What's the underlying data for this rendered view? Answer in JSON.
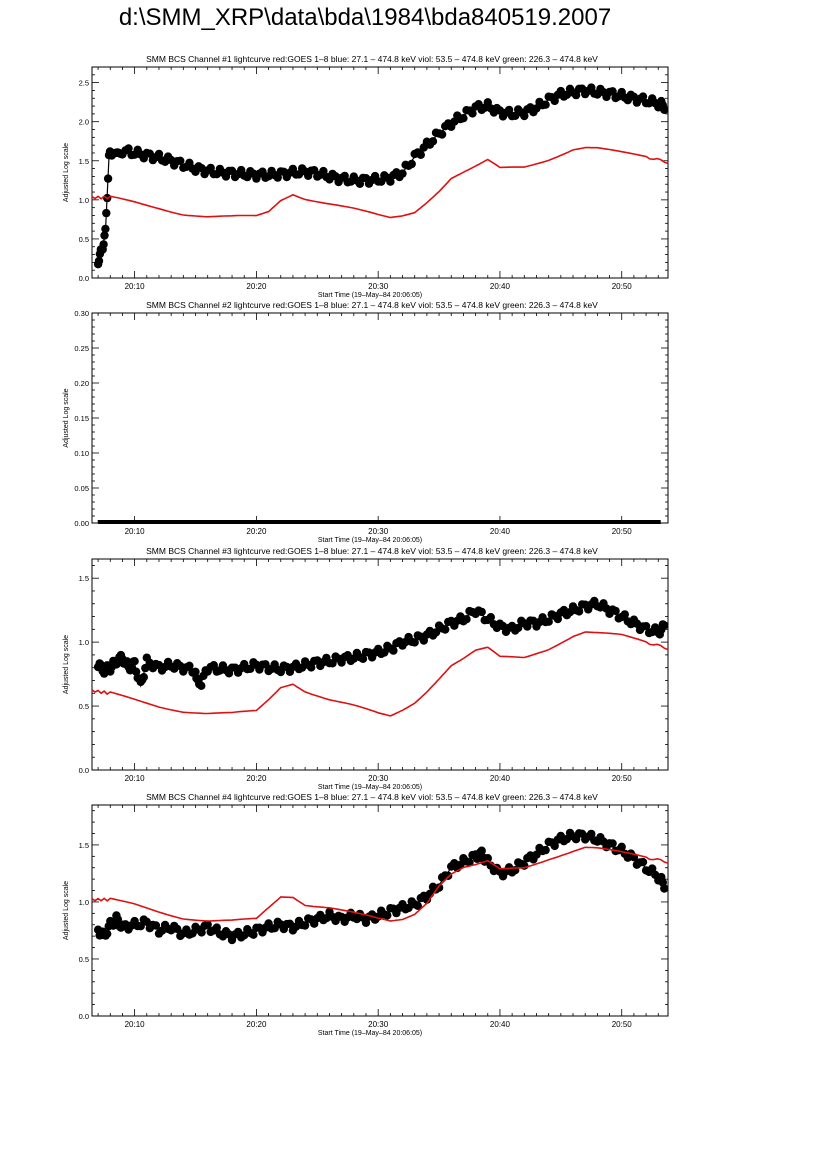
{
  "page_title": "d:\\SMM_XRP\\data\\bda\\1984\\bda840519.2007",
  "colors": {
    "red": "#dd1111",
    "black": "#000000"
  },
  "chart_data": [
    {
      "type": "scatter",
      "title": "SMM BCS Channel #1 lightcurve  red:GOES 1–8  blue: 27.1 – 474.8 keV  viol: 53.5 – 474.8 keV  green: 226.3 – 474.8 keV",
      "xlabel": "Start Time (19–May–84 20:06:05)",
      "ylabel": "Adjusted Log scale",
      "xlim": [
        6.5,
        53.8
      ],
      "ylim": [
        0,
        2.7
      ],
      "xticks": [
        10,
        20,
        30,
        40,
        50
      ],
      "xtick_labels": [
        "20:10",
        "20:20",
        "20:30",
        "20:40",
        "20:50"
      ],
      "yticks": [
        0,
        0.5,
        1.0,
        1.5,
        2.0,
        2.5
      ],
      "ytick_labels": [
        "0.0",
        "0.5",
        "1.0",
        "1.5",
        "2.0",
        "2.5"
      ],
      "series": [
        {
          "color": "#000000",
          "style": "points",
          "x": [
            7.0,
            7.3,
            7.6,
            7.9,
            8.2,
            8.6,
            9,
            10,
            11,
            12,
            13,
            14,
            15,
            16,
            17,
            18,
            19,
            20,
            21,
            22,
            23,
            24,
            25,
            26,
            27,
            28,
            29,
            30,
            31,
            32,
            33,
            34,
            35,
            36,
            37,
            38,
            39,
            40,
            41,
            42,
            43,
            44,
            45,
            46,
            47,
            48,
            49,
            50,
            51,
            52,
            53,
            53.5
          ],
          "y": [
            0.22,
            0.35,
            0.58,
            1.55,
            1.63,
            1.65,
            1.63,
            1.6,
            1.57,
            1.54,
            1.5,
            1.45,
            1.4,
            1.37,
            1.35,
            1.34,
            1.33,
            1.32,
            1.32,
            1.33,
            1.35,
            1.36,
            1.34,
            1.3,
            1.27,
            1.25,
            1.25,
            1.26,
            1.28,
            1.35,
            1.55,
            1.7,
            1.85,
            1.98,
            2.08,
            2.18,
            2.2,
            2.12,
            2.1,
            2.12,
            2.18,
            2.28,
            2.35,
            2.38,
            2.4,
            2.38,
            2.36,
            2.33,
            2.3,
            2.27,
            2.23,
            2.2
          ]
        },
        {
          "color": "#dd1111",
          "style": "line",
          "x": [
            6.5,
            8,
            10,
            12,
            14,
            16,
            18,
            20,
            21,
            22,
            23,
            24,
            26,
            28,
            30,
            31,
            32,
            33,
            34,
            35,
            36,
            37,
            38,
            39,
            40,
            42,
            44,
            46,
            47,
            48,
            50,
            52,
            53.8
          ],
          "y": [
            1.03,
            1.03,
            0.97,
            0.9,
            0.82,
            0.78,
            0.78,
            0.79,
            0.85,
            1.0,
            1.08,
            1.02,
            0.95,
            0.88,
            0.8,
            0.77,
            0.8,
            0.85,
            0.98,
            1.12,
            1.28,
            1.35,
            1.42,
            1.5,
            1.4,
            1.42,
            1.52,
            1.65,
            1.67,
            1.66,
            1.6,
            1.55,
            1.48
          ]
        }
      ]
    },
    {
      "type": "scatter",
      "title": "SMM BCS Channel #2 lightcurve  red:GOES 1–8  blue: 27.1 – 474.8 keV  viol: 53.5 – 474.8 keV  green: 226.3 – 474.8 keV",
      "xlabel": "Start Time (19–May–84 20:06:05)",
      "ylabel": "Adjusted Log scale",
      "xlim": [
        6.5,
        53.8
      ],
      "ylim": [
        0,
        0.3
      ],
      "xticks": [
        10,
        20,
        30,
        40,
        50
      ],
      "xtick_labels": [
        "20:10",
        "20:20",
        "20:30",
        "20:40",
        "20:50"
      ],
      "yticks": [
        0,
        0.05,
        0.1,
        0.15,
        0.2,
        0.25,
        0.3
      ],
      "ytick_labels": [
        "0.00",
        "0.05",
        "0.10",
        "0.15",
        "0.20",
        "0.25",
        "0.30"
      ],
      "series": [
        {
          "color": "#000000",
          "style": "flat",
          "x": [
            7.0,
            53.2
          ],
          "y": [
            0.0,
            0.0
          ]
        }
      ]
    },
    {
      "type": "scatter",
      "title": "SMM BCS Channel #3 lightcurve  red:GOES 1–8  blue: 27.1 – 474.8 keV  viol: 53.5 – 474.8 keV  green: 226.3 – 474.8 keV",
      "xlabel": "Start Time (19–May–84 20:06:05)",
      "ylabel": "Adjusted Log scale",
      "xlim": [
        6.5,
        53.8
      ],
      "ylim": [
        0,
        1.65
      ],
      "xticks": [
        10,
        20,
        30,
        40,
        50
      ],
      "xtick_labels": [
        "20:10",
        "20:20",
        "20:30",
        "20:40",
        "20:50"
      ],
      "yticks": [
        0,
        0.5,
        1.0,
        1.5
      ],
      "ytick_labels": [
        "0.0",
        "0.5",
        "1.0",
        "1.5"
      ],
      "series": [
        {
          "color": "#000000",
          "style": "points",
          "x": [
            7.0,
            7.5,
            8,
            8.5,
            9,
            9.5,
            10,
            10.5,
            11,
            12,
            13,
            14,
            15,
            15.3,
            16,
            17,
            18,
            19,
            20,
            21,
            22,
            23,
            24,
            25,
            26,
            27,
            28,
            29,
            30,
            31,
            32,
            33,
            34,
            35,
            36,
            37,
            38,
            39,
            40,
            41,
            42,
            43,
            44,
            45,
            46,
            47,
            48,
            49,
            50,
            51,
            52,
            53,
            53.5
          ],
          "y": [
            0.82,
            0.78,
            0.8,
            0.85,
            0.88,
            0.8,
            0.83,
            0.66,
            0.85,
            0.8,
            0.82,
            0.8,
            0.78,
            0.65,
            0.8,
            0.79,
            0.78,
            0.8,
            0.82,
            0.8,
            0.79,
            0.8,
            0.82,
            0.84,
            0.85,
            0.87,
            0.88,
            0.9,
            0.92,
            0.95,
            1.0,
            1.02,
            1.05,
            1.1,
            1.15,
            1.18,
            1.25,
            1.18,
            1.12,
            1.1,
            1.15,
            1.15,
            1.18,
            1.22,
            1.25,
            1.28,
            1.3,
            1.25,
            1.2,
            1.15,
            1.1,
            1.08,
            1.12
          ]
        },
        {
          "color": "#dd1111",
          "style": "line",
          "x": [
            6.5,
            8,
            10,
            12,
            14,
            16,
            18,
            20,
            21,
            22,
            23,
            24,
            26,
            28,
            30,
            31,
            32,
            33,
            34,
            35,
            36,
            37,
            38,
            39,
            40,
            42,
            44,
            46,
            47,
            48,
            50,
            52,
            53.8
          ],
          "y": [
            0.62,
            0.6,
            0.55,
            0.5,
            0.46,
            0.44,
            0.44,
            0.46,
            0.55,
            0.65,
            0.68,
            0.62,
            0.55,
            0.5,
            0.44,
            0.42,
            0.47,
            0.53,
            0.62,
            0.72,
            0.82,
            0.87,
            0.93,
            0.95,
            0.88,
            0.88,
            0.95,
            1.05,
            1.08,
            1.07,
            1.05,
            1.0,
            0.95
          ]
        }
      ]
    },
    {
      "type": "scatter",
      "title": "SMM BCS Channel #4 lightcurve  red:GOES 1–8  blue: 27.1 – 474.8 keV  viol: 53.5 – 474.8 keV  green: 226.3 – 474.8 keV",
      "xlabel": "Start Time (19–May–84 20:06:05)",
      "ylabel": "Adjusted Log scale",
      "xlim": [
        6.5,
        53.8
      ],
      "ylim": [
        0,
        1.85
      ],
      "xticks": [
        10,
        20,
        30,
        40,
        50
      ],
      "xtick_labels": [
        "20:10",
        "20:20",
        "20:30",
        "20:40",
        "20:50"
      ],
      "yticks": [
        0,
        0.5,
        1.0,
        1.5
      ],
      "ytick_labels": [
        "0.0",
        "0.5",
        "1.0",
        "1.5"
      ],
      "series": [
        {
          "color": "#000000",
          "style": "points",
          "x": [
            7,
            7.5,
            8,
            8.5,
            9,
            10,
            11,
            12,
            13,
            14,
            15,
            16,
            17,
            18,
            19,
            20,
            21,
            22,
            23,
            24,
            25,
            26,
            27,
            28,
            29,
            30,
            31,
            32,
            33,
            34,
            35,
            36,
            37,
            38,
            38.5,
            39,
            40,
            41,
            42,
            43,
            44,
            45,
            46,
            47,
            48,
            49,
            50,
            51,
            52,
            53,
            53.5
          ],
          "y": [
            0.75,
            0.7,
            0.8,
            0.85,
            0.78,
            0.8,
            0.82,
            0.75,
            0.78,
            0.72,
            0.75,
            0.78,
            0.73,
            0.7,
            0.72,
            0.75,
            0.78,
            0.8,
            0.78,
            0.82,
            0.85,
            0.88,
            0.85,
            0.88,
            0.85,
            0.88,
            0.92,
            0.95,
            0.98,
            1.05,
            1.15,
            1.3,
            1.35,
            1.4,
            1.42,
            1.35,
            1.25,
            1.28,
            1.35,
            1.42,
            1.5,
            1.55,
            1.58,
            1.58,
            1.55,
            1.5,
            1.45,
            1.38,
            1.3,
            1.22,
            1.15
          ]
        },
        {
          "color": "#dd1111",
          "style": "line",
          "x": [
            6.5,
            8,
            10,
            12,
            14,
            16,
            18,
            20,
            21,
            22,
            23,
            24,
            26,
            28,
            30,
            31,
            32,
            33,
            34,
            35,
            36,
            37,
            38,
            39,
            40,
            42,
            44,
            46,
            47,
            48,
            50,
            52,
            53.8
          ],
          "y": [
            1.02,
            1.02,
            0.98,
            0.92,
            0.86,
            0.83,
            0.83,
            0.85,
            0.95,
            1.05,
            1.05,
            0.98,
            0.95,
            0.9,
            0.85,
            0.83,
            0.85,
            0.9,
            1.0,
            1.15,
            1.25,
            1.3,
            1.32,
            1.35,
            1.28,
            1.3,
            1.38,
            1.45,
            1.48,
            1.47,
            1.43,
            1.39,
            1.35
          ]
        }
      ]
    }
  ]
}
